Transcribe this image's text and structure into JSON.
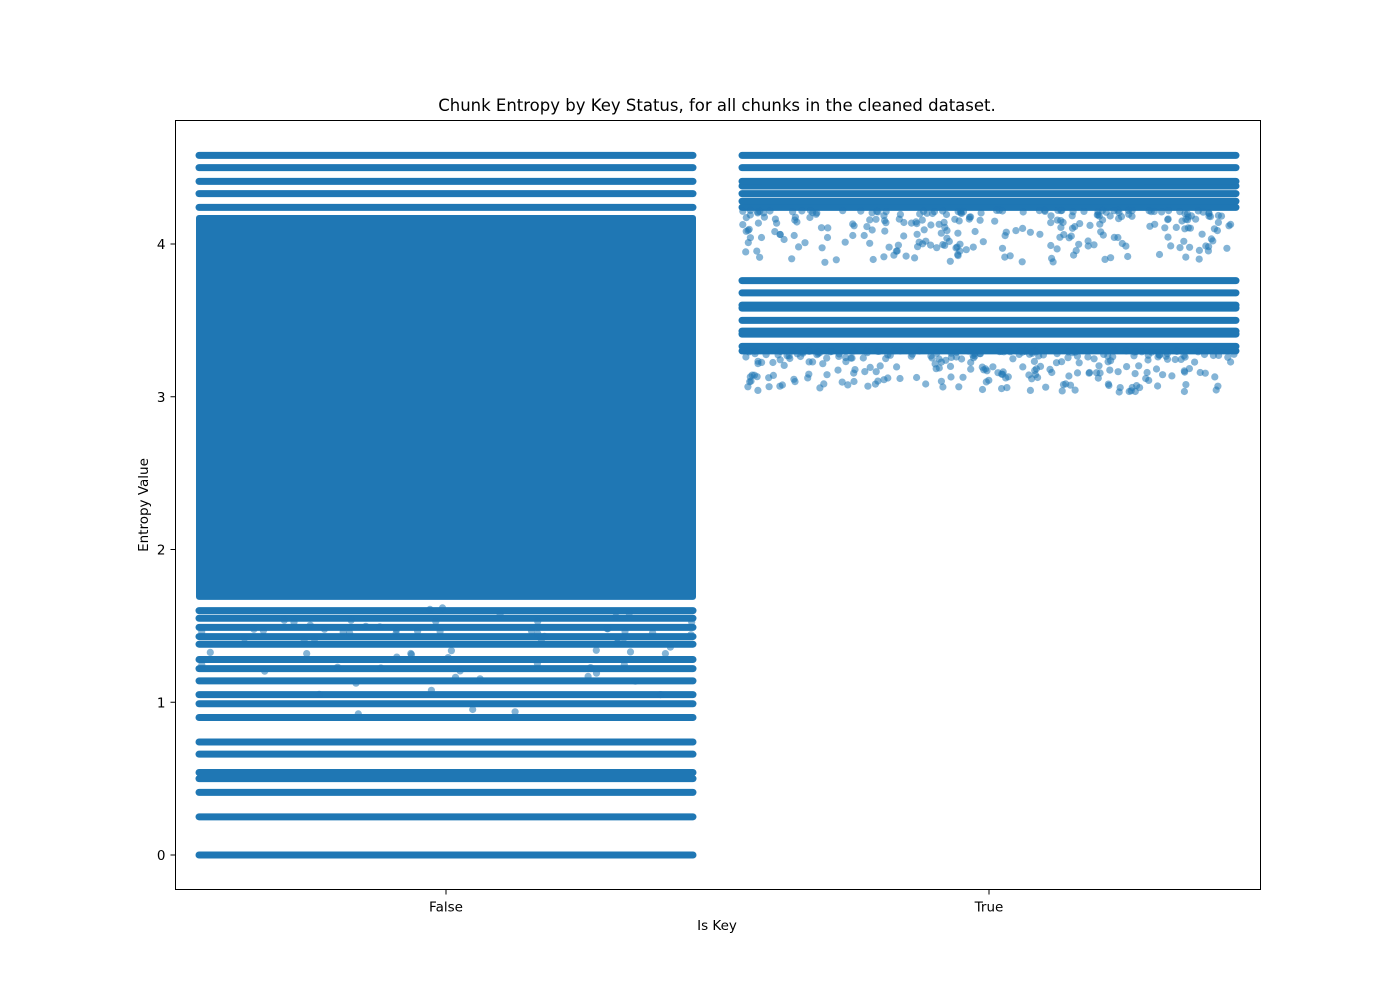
{
  "chart_data": {
    "type": "scatter",
    "title": "Chunk Entropy by Key Status, for all chunks in the cleaned dataset.",
    "xlabel": "Is Key",
    "ylabel": "Entropy Value",
    "categories": [
      "False",
      "True"
    ],
    "x_tick_labels": [
      "False",
      "True"
    ],
    "y_ticks": [
      0,
      1,
      2,
      3,
      4
    ],
    "y_tick_labels": [
      "0",
      "1",
      "2",
      "3",
      "4"
    ],
    "ylim": [
      -0.23,
      4.81
    ],
    "grid": false,
    "legend": "none",
    "marker_color": "#1f77b4",
    "series": [
      {
        "category": "False",
        "dense_range": [
          1.67,
          4.19
        ],
        "bands": [
          0.0,
          0.25,
          0.41,
          0.5,
          0.54,
          0.66,
          0.74,
          0.9,
          0.99,
          1.05,
          1.14,
          1.22,
          1.28,
          1.38,
          1.43,
          1.49,
          1.55,
          1.6,
          4.24,
          4.33,
          4.41,
          4.5,
          4.58
        ],
        "sparse_range": [
          0.88,
          1.62
        ]
      },
      {
        "category": "True",
        "bands": [
          3.3,
          3.33,
          3.41,
          3.43,
          3.5,
          3.58,
          3.6,
          3.68,
          3.76,
          4.24,
          4.28,
          4.33,
          4.38,
          4.41,
          4.5,
          4.58
        ],
        "sparse_ranges": [
          [
            3.03,
            3.3
          ],
          [
            3.88,
            4.22
          ]
        ]
      }
    ]
  }
}
